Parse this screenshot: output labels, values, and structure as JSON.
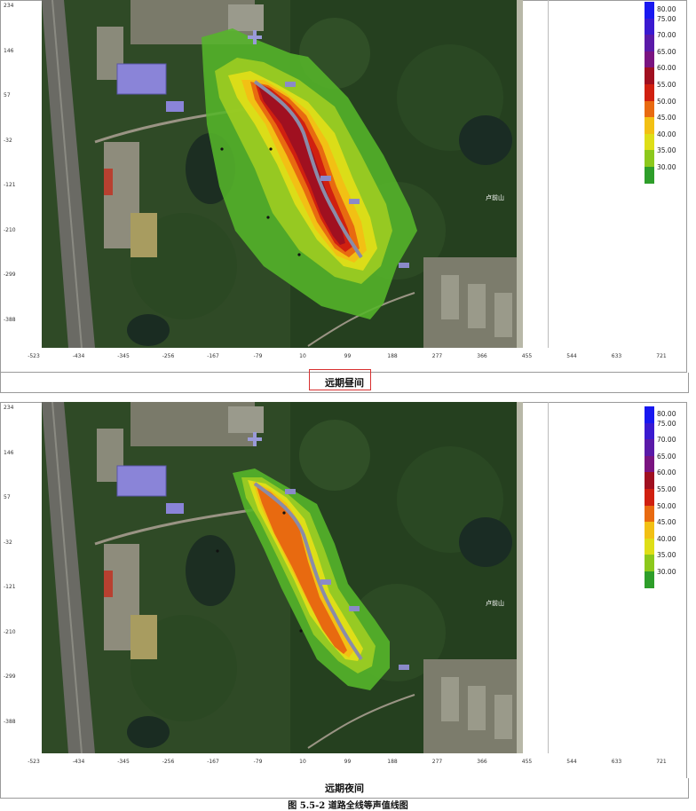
{
  "panels": [
    {
      "id": "day",
      "caption": "远期昼间",
      "highlighted": true,
      "y_ticks": [
        "234",
        "146",
        "57",
        "-32",
        "-121",
        "-210",
        "-299",
        "-388"
      ],
      "x_ticks": [
        "-523",
        "-434",
        "-345",
        "-256",
        "-167",
        "-79",
        "10",
        "99",
        "188",
        "277",
        "366",
        "455",
        "544",
        "633",
        "721"
      ],
      "place_label": "卢前山"
    },
    {
      "id": "night",
      "caption": "远期夜间",
      "highlighted": false,
      "y_ticks": [
        "234",
        "146",
        "57",
        "-32",
        "-121",
        "-210",
        "-299",
        "-388"
      ],
      "x_ticks": [
        "-523",
        "-434",
        "-345",
        "-256",
        "-167",
        "-79",
        "10",
        "99",
        "188",
        "277",
        "366",
        "455",
        "544",
        "633",
        "721"
      ],
      "place_label": "卢前山"
    }
  ],
  "legend": [
    {
      "label": "80.00",
      "color": "#1818f0"
    },
    {
      "label": "75.00",
      "color": "#3a1ad0"
    },
    {
      "label": "70.00",
      "color": "#5a1aa8"
    },
    {
      "label": "65.00",
      "color": "#7a1480"
    },
    {
      "label": "60.00",
      "color": "#a01020"
    },
    {
      "label": "55.00",
      "color": "#d02010"
    },
    {
      "label": "50.00",
      "color": "#e86a10"
    },
    {
      "label": "45.00",
      "color": "#f2c014"
    },
    {
      "label": "40.00",
      "color": "#dede18"
    },
    {
      "label": "35.00",
      "color": "#8cc81c"
    },
    {
      "label": "30.00",
      "color": "#2e9e2a"
    }
  ],
  "figure_title": "图 5.5-2    道路全线等声值线图"
}
